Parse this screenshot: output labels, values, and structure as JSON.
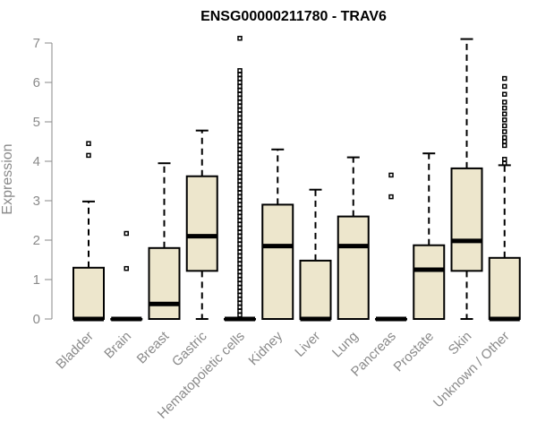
{
  "chart_data": {
    "type": "boxplot",
    "title": "ENSG00000211780 - TRAV6",
    "xlabel": "",
    "ylabel": "Expression",
    "ylim": [
      0,
      7
    ],
    "yticks": [
      0,
      1,
      2,
      3,
      4,
      5,
      6,
      7
    ],
    "grid": false,
    "box_color": "#ede6cc",
    "categories": [
      "Bladder",
      "Brain",
      "Breast",
      "Gastric",
      "Hematopoietic cells",
      "Kidney",
      "Liver",
      "Lung",
      "Pancreas",
      "Prostate",
      "Skin",
      "Unknown / Other"
    ],
    "series": [
      {
        "name": "Bladder",
        "min": 0,
        "q1": 0,
        "median": 0,
        "q3": 1.3,
        "max": 2.98,
        "outliers": [
          4.15,
          4.45
        ]
      },
      {
        "name": "Brain",
        "min": 0,
        "q1": 0,
        "median": 0,
        "q3": 0,
        "max": 0,
        "outliers": [
          1.28,
          2.17
        ]
      },
      {
        "name": "Breast",
        "min": 0,
        "q1": 0,
        "median": 0.38,
        "q3": 1.8,
        "max": 3.95,
        "outliers": []
      },
      {
        "name": "Gastric",
        "min": 0,
        "q1": 1.22,
        "median": 2.1,
        "q3": 3.62,
        "max": 4.78,
        "outliers": []
      },
      {
        "name": "Hematopoietic cells",
        "min": 0,
        "q1": 0,
        "median": 0,
        "q3": 0,
        "max": 0,
        "outliers": [
          0.1,
          0.2,
          0.3,
          0.4,
          0.5,
          0.6,
          0.7,
          0.8,
          0.9,
          1.0,
          1.1,
          1.2,
          1.3,
          1.4,
          1.5,
          1.6,
          1.7,
          1.8,
          1.9,
          2.0,
          2.1,
          2.2,
          2.3,
          2.4,
          2.5,
          2.6,
          2.7,
          2.8,
          2.9,
          3.0,
          3.1,
          3.2,
          3.3,
          3.4,
          3.5,
          3.6,
          3.7,
          3.8,
          3.9,
          4.0,
          4.1,
          4.2,
          4.3,
          4.4,
          4.5,
          4.6,
          4.7,
          4.8,
          4.9,
          5.0,
          5.1,
          5.2,
          5.3,
          5.4,
          5.5,
          5.6,
          5.7,
          5.8,
          5.9,
          6.0,
          6.1,
          6.2,
          6.3,
          7.12
        ]
      },
      {
        "name": "Kidney",
        "min": 0,
        "q1": 0,
        "median": 1.85,
        "q3": 2.9,
        "max": 4.3,
        "outliers": []
      },
      {
        "name": "Liver",
        "min": 0,
        "q1": 0,
        "median": 0,
        "q3": 1.48,
        "max": 3.28,
        "outliers": []
      },
      {
        "name": "Lung",
        "min": 0,
        "q1": 0,
        "median": 1.85,
        "q3": 2.6,
        "max": 4.1,
        "outliers": []
      },
      {
        "name": "Pancreas",
        "min": 0,
        "q1": 0,
        "median": 0,
        "q3": 0,
        "max": 0,
        "outliers": [
          3.1,
          3.65
        ]
      },
      {
        "name": "Prostate",
        "min": 0,
        "q1": 0,
        "median": 1.25,
        "q3": 1.87,
        "max": 4.2,
        "outliers": []
      },
      {
        "name": "Skin",
        "min": 0,
        "q1": 1.22,
        "median": 1.98,
        "q3": 3.82,
        "max": 7.1,
        "outliers": []
      },
      {
        "name": "Unknown / Other",
        "min": 0,
        "q1": 0,
        "median": 0,
        "q3": 1.55,
        "max": 3.9,
        "outliers": [
          3.95,
          4.05,
          4.4,
          4.5,
          4.6,
          4.75,
          4.9,
          5.05,
          5.2,
          5.35,
          5.5,
          5.7,
          5.9,
          6.1
        ]
      }
    ]
  }
}
